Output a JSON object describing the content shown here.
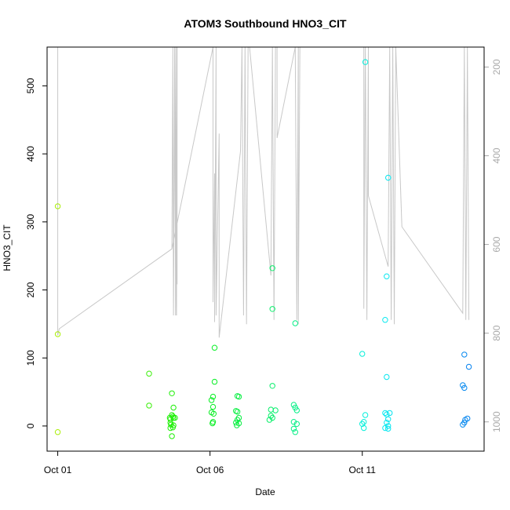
{
  "chart_data": {
    "type": "scatter",
    "title": "ATOM3 Southbound HNO3_CIT",
    "xlabel": "Date",
    "ylabel": "HNO3_CIT",
    "x_ticks": [
      {
        "day": 1,
        "label": "Oct 01"
      },
      {
        "day": 6,
        "label": "Oct 06"
      },
      {
        "day": 11,
        "label": "Oct 11"
      }
    ],
    "xlim": [
      0.65,
      15.0
    ],
    "ylim": [
      -37,
      557
    ],
    "y_ticks": [
      0,
      100,
      200,
      300,
      400,
      500
    ],
    "right_axis": {
      "label": "",
      "ticks": [
        200,
        400,
        600,
        800,
        1000
      ],
      "lim": [
        1066,
        155
      ],
      "reversed": true
    },
    "grid": false,
    "legend": "none",
    "point_color_scale": "rainbow by date: yellow-green (Oct 01) to blue (Oct 15)",
    "series": [
      {
        "kind": "points",
        "points": [
          [
            1.0,
            323
          ],
          [
            1.0,
            135
          ],
          [
            1.0,
            -9
          ],
          [
            4.0,
            77
          ],
          [
            4.0,
            30
          ],
          [
            4.75,
            48
          ],
          [
            4.8,
            27
          ],
          [
            4.7,
            10
          ],
          [
            4.75,
            16
          ],
          [
            4.8,
            12
          ],
          [
            4.7,
            5
          ],
          [
            4.78,
            14
          ],
          [
            4.72,
            2
          ],
          [
            4.8,
            1
          ],
          [
            4.7,
            -3
          ],
          [
            4.78,
            -2
          ],
          [
            4.75,
            -15
          ],
          [
            4.85,
            12
          ],
          [
            4.68,
            12
          ],
          [
            6.15,
            115
          ],
          [
            6.15,
            65
          ],
          [
            6.1,
            43
          ],
          [
            6.05,
            38
          ],
          [
            6.1,
            28
          ],
          [
            6.05,
            20
          ],
          [
            6.12,
            18
          ],
          [
            6.1,
            6
          ],
          [
            6.08,
            4
          ],
          [
            6.9,
            44
          ],
          [
            6.95,
            43
          ],
          [
            6.85,
            22
          ],
          [
            6.9,
            21
          ],
          [
            6.95,
            12
          ],
          [
            6.9,
            9
          ],
          [
            6.85,
            5
          ],
          [
            6.95,
            4
          ],
          [
            6.88,
            1
          ],
          [
            8.05,
            232
          ],
          [
            8.05,
            172
          ],
          [
            8.05,
            59
          ],
          [
            8.0,
            24
          ],
          [
            8.15,
            23
          ],
          [
            8.0,
            15
          ],
          [
            8.05,
            12
          ],
          [
            7.95,
            9
          ],
          [
            8.8,
            151
          ],
          [
            8.75,
            31
          ],
          [
            8.8,
            27
          ],
          [
            8.85,
            23
          ],
          [
            8.75,
            6
          ],
          [
            8.85,
            3
          ],
          [
            8.75,
            -4
          ],
          [
            8.8,
            -9
          ],
          [
            11.1,
            535
          ],
          [
            11.0,
            106
          ],
          [
            11.1,
            16
          ],
          [
            11.05,
            6
          ],
          [
            11.0,
            3
          ],
          [
            11.05,
            -3
          ],
          [
            11.85,
            365
          ],
          [
            11.8,
            220
          ],
          [
            11.75,
            156
          ],
          [
            11.8,
            72
          ],
          [
            11.75,
            19
          ],
          [
            11.8,
            17
          ],
          [
            11.9,
            19
          ],
          [
            11.85,
            10
          ],
          [
            11.8,
            5
          ],
          [
            11.85,
            0
          ],
          [
            11.75,
            -3
          ],
          [
            11.85,
            -4
          ],
          [
            14.35,
            105
          ],
          [
            14.5,
            87
          ],
          [
            14.3,
            60
          ],
          [
            14.35,
            56
          ],
          [
            14.45,
            11
          ],
          [
            14.38,
            9
          ],
          [
            14.35,
            5
          ],
          [
            14.3,
            2
          ]
        ]
      },
      {
        "kind": "line",
        "axis": "right",
        "color": "#c8c8c8",
        "points": [
          [
            1.0,
            155
          ],
          [
            1.0,
            805
          ],
          [
            1.05,
            790
          ],
          [
            4.75,
            610
          ],
          [
            4.78,
            155
          ],
          [
            4.8,
            760
          ],
          [
            4.84,
            155
          ],
          [
            4.87,
            760
          ],
          [
            4.9,
            155
          ],
          [
            4.92,
            690
          ],
          [
            4.92,
            155
          ],
          [
            4.9,
            760
          ],
          [
            4.85,
            155
          ],
          [
            4.8,
            760
          ],
          [
            4.78,
            155
          ],
          [
            4.75,
            610
          ],
          [
            6.1,
            155
          ],
          [
            6.1,
            730
          ],
          [
            6.15,
            440
          ],
          [
            6.15,
            775
          ],
          [
            6.2,
            155
          ],
          [
            6.2,
            760
          ],
          [
            6.3,
            350
          ],
          [
            6.3,
            810
          ],
          [
            7.0,
            390
          ],
          [
            7.05,
            155
          ],
          [
            7.1,
            760
          ],
          [
            7.15,
            155
          ],
          [
            7.2,
            780
          ],
          [
            7.25,
            155
          ],
          [
            7.3,
            155
          ],
          [
            8.0,
            670
          ],
          [
            8.05,
            155
          ],
          [
            8.1,
            770
          ],
          [
            8.15,
            155
          ],
          [
            8.2,
            155
          ],
          [
            8.2,
            360
          ],
          [
            8.8,
            155
          ],
          [
            8.85,
            770
          ],
          [
            8.9,
            155
          ],
          [
            8.9,
            780
          ],
          [
            8.95,
            155
          ],
          [
            11.05,
            155
          ],
          [
            11.05,
            745
          ],
          [
            11.1,
            155
          ],
          [
            11.15,
            770
          ],
          [
            11.2,
            155
          ],
          [
            11.2,
            490
          ],
          [
            11.85,
            650
          ],
          [
            11.9,
            155
          ],
          [
            11.95,
            770
          ],
          [
            12.0,
            155
          ],
          [
            12.05,
            780
          ],
          [
            12.1,
            155
          ],
          [
            12.3,
            560
          ],
          [
            14.3,
            755
          ],
          [
            14.35,
            155
          ],
          [
            14.4,
            770
          ],
          [
            14.45,
            155
          ],
          [
            14.5,
            770
          ]
        ]
      }
    ]
  }
}
